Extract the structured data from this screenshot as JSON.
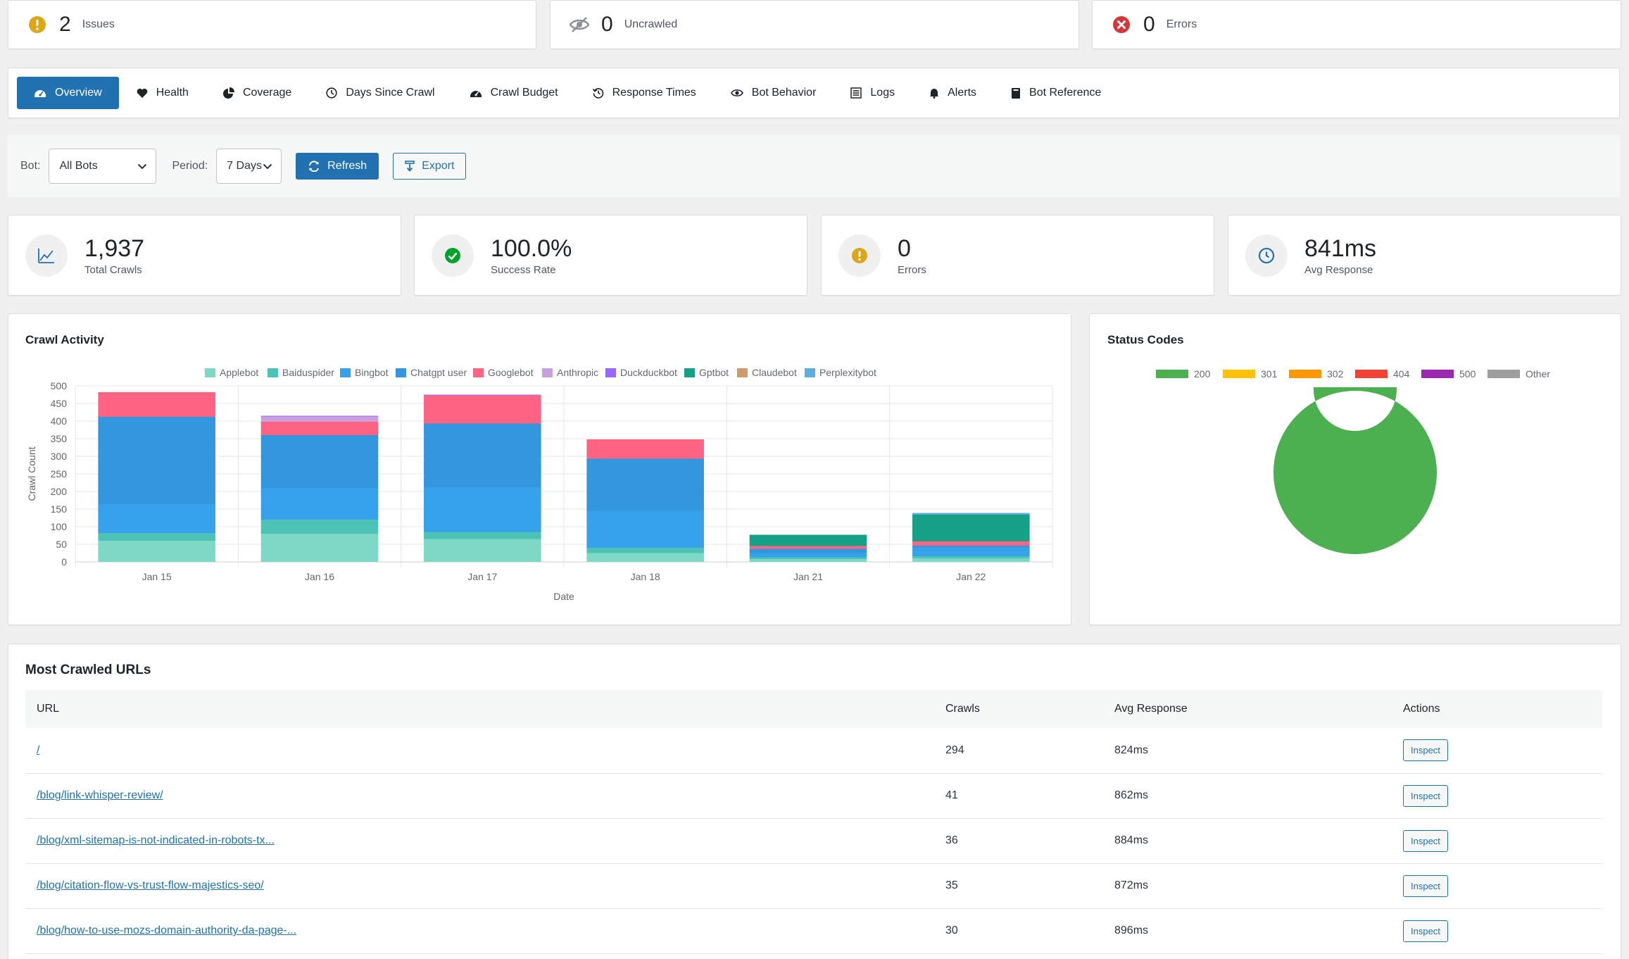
{
  "summary": [
    {
      "count": "2",
      "label": "Issues",
      "icon": "warning-icon",
      "color": "#dba617"
    },
    {
      "count": "0",
      "label": "Uncrawled",
      "icon": "eye-slash-icon",
      "color": "#8c8f94"
    },
    {
      "count": "0",
      "label": "Errors",
      "icon": "error-icon",
      "color": "#d63638"
    }
  ],
  "tabs": [
    {
      "label": "Overview",
      "icon": "dashboard-icon",
      "active": true
    },
    {
      "label": "Health",
      "icon": "heart-icon"
    },
    {
      "label": "Coverage",
      "icon": "pie-chart-icon"
    },
    {
      "label": "Days Since Crawl",
      "icon": "clock-icon"
    },
    {
      "label": "Crawl Budget",
      "icon": "gauge-icon"
    },
    {
      "label": "Response Times",
      "icon": "history-icon"
    },
    {
      "label": "Bot Behavior",
      "icon": "eye-icon"
    },
    {
      "label": "Logs",
      "icon": "list-icon"
    },
    {
      "label": "Alerts",
      "icon": "bell-icon"
    },
    {
      "label": "Bot Reference",
      "icon": "book-icon"
    }
  ],
  "filters": {
    "bot_label": "Bot:",
    "bot_value": "All Bots",
    "period_label": "Period:",
    "period_value": "7 Days",
    "refresh_label": "Refresh",
    "export_label": "Export"
  },
  "stats": [
    {
      "value": "1,937",
      "label": "Total Crawls",
      "icon": "chart-line-icon"
    },
    {
      "value": "100.0%",
      "label": "Success Rate",
      "icon": "check-circle-icon"
    },
    {
      "value": "0",
      "label": "Errors",
      "icon": "warning-icon"
    },
    {
      "value": "841ms",
      "label": "Avg Response",
      "icon": "clock-icon"
    }
  ],
  "colors": {
    "accent": "#2271b1",
    "success": "#00a32a",
    "warning": "#dba617",
    "error": "#d63638"
  },
  "crawl_activity": {
    "title": "Crawl Activity"
  },
  "status_codes": {
    "title": "Status Codes"
  },
  "chart_data": [
    {
      "type": "bar",
      "stacked": true,
      "title": "Crawl Activity",
      "xlabel": "Date",
      "ylabel": "Crawl Count",
      "ylim": [
        0,
        500
      ],
      "yticks": [
        0,
        50,
        100,
        150,
        200,
        250,
        300,
        350,
        400,
        450,
        500
      ],
      "grid": true,
      "legend_position": "top",
      "categories": [
        "Jan 15",
        "Jan 16",
        "Jan 17",
        "Jan 18",
        "Jan 21",
        "Jan 22"
      ],
      "series": [
        {
          "name": "Applebot",
          "color": "#7dd9c5",
          "values": [
            60,
            80,
            65,
            25,
            8,
            10
          ]
        },
        {
          "name": "Baiduspider",
          "color": "#4dc2b6",
          "values": [
            22,
            40,
            20,
            15,
            5,
            6
          ]
        },
        {
          "name": "Bingbot",
          "color": "#36a2eb",
          "values": [
            82,
            90,
            128,
            105,
            12,
            25
          ]
        },
        {
          "name": "Chatgpt user",
          "color": "#3496dc",
          "values": [
            248,
            150,
            180,
            148,
            12,
            5
          ]
        },
        {
          "name": "Googlebot",
          "color": "#ff6384",
          "values": [
            70,
            38,
            80,
            55,
            8,
            12
          ]
        },
        {
          "name": "Anthropic",
          "color": "#c9a0dc",
          "values": [
            0,
            15,
            0,
            0,
            0,
            0
          ]
        },
        {
          "name": "Duckduckbot",
          "color": "#9966ff",
          "values": [
            0,
            2,
            2,
            0,
            0,
            0
          ]
        },
        {
          "name": "Gptbot",
          "color": "#16a085",
          "values": [
            0,
            0,
            0,
            0,
            32,
            76
          ]
        },
        {
          "name": "Claudebot",
          "color": "#d09a6b",
          "values": [
            0,
            0,
            0,
            0,
            0,
            0
          ]
        },
        {
          "name": "Perplexitybot",
          "color": "#5dade2",
          "values": [
            0,
            0,
            0,
            0,
            0,
            5
          ]
        }
      ]
    },
    {
      "type": "pie",
      "donut": true,
      "title": "Status Codes",
      "legend_position": "top",
      "categories": [
        "200",
        "301",
        "302",
        "404",
        "500",
        "Other"
      ],
      "colors": [
        "#4caf50",
        "#ffc107",
        "#ff9800",
        "#f44336",
        "#9c27b0",
        "#9e9e9e"
      ],
      "values": [
        1937,
        0,
        0,
        0,
        0,
        0
      ]
    }
  ],
  "urls": {
    "title": "Most Crawled URLs",
    "headers": {
      "url": "URL",
      "crawls": "Crawls",
      "avg": "Avg Response",
      "actions": "Actions"
    },
    "action_label": "Inspect",
    "rows": [
      {
        "url": "/",
        "crawls": "294",
        "avg": "824ms"
      },
      {
        "url": "/blog/link-whisper-review/",
        "crawls": "41",
        "avg": "862ms"
      },
      {
        "url": "/blog/xml-sitemap-is-not-indicated-in-robots-tx...",
        "crawls": "36",
        "avg": "884ms"
      },
      {
        "url": "/blog/citation-flow-vs-trust-flow-majestics-seo/",
        "crawls": "35",
        "avg": "872ms"
      },
      {
        "url": "/blog/how-to-use-mozs-domain-authority-da-page-...",
        "crawls": "30",
        "avg": "896ms"
      }
    ]
  }
}
